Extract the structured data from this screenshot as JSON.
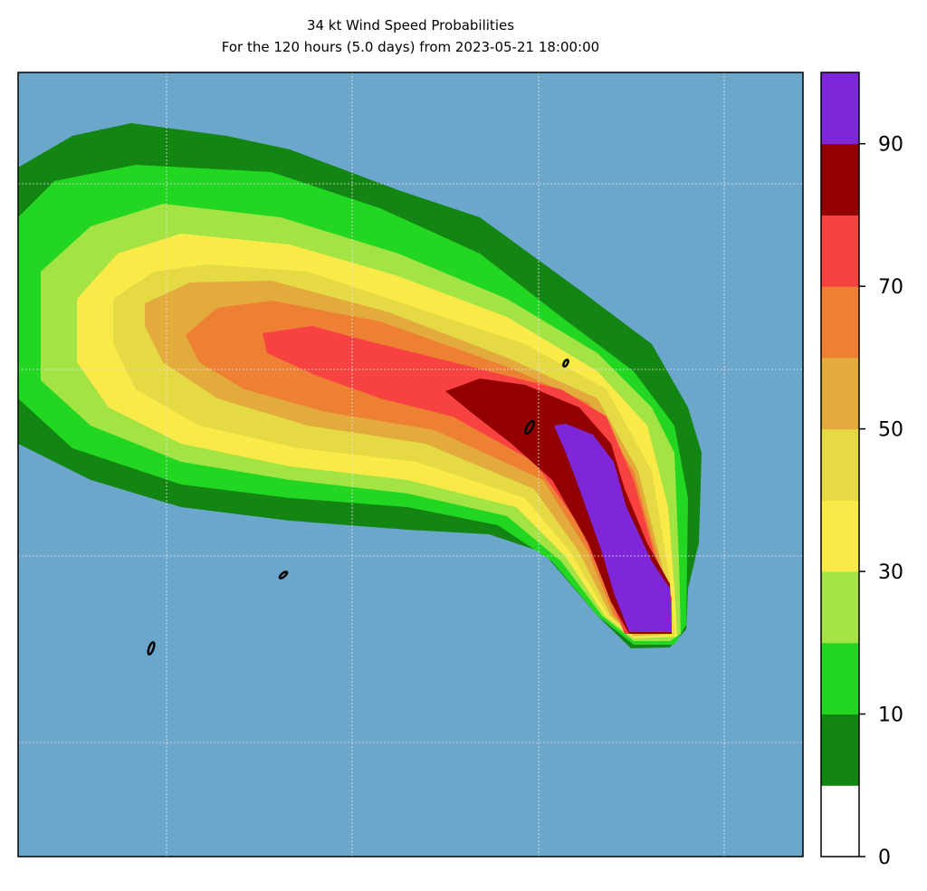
{
  "title": {
    "line1": "34 kt Wind Speed Probabilities",
    "line2": "For the 120 hours (5.0 days) from 2023-05-21 18:00:00"
  },
  "map": {
    "ocean_color": "#6ba6cb",
    "land_outline_color": "#000000",
    "grid_color": "#e8e8e8"
  },
  "colorbar": {
    "levels": [
      0,
      5,
      10,
      20,
      30,
      40,
      50,
      60,
      70,
      80,
      90,
      100
    ],
    "colors": [
      "#ffffff",
      "#138513",
      "#22d622",
      "#a3e444",
      "#f9ea48",
      "#e5d944",
      "#e3aa3c",
      "#ee8034",
      "#f84242",
      "#930002",
      "#7e27d8"
    ],
    "tick_labels": [
      "0",
      "10",
      "30",
      "50",
      "70",
      "90"
    ],
    "tick_values": [
      0,
      10,
      30,
      50,
      70,
      90
    ]
  }
}
